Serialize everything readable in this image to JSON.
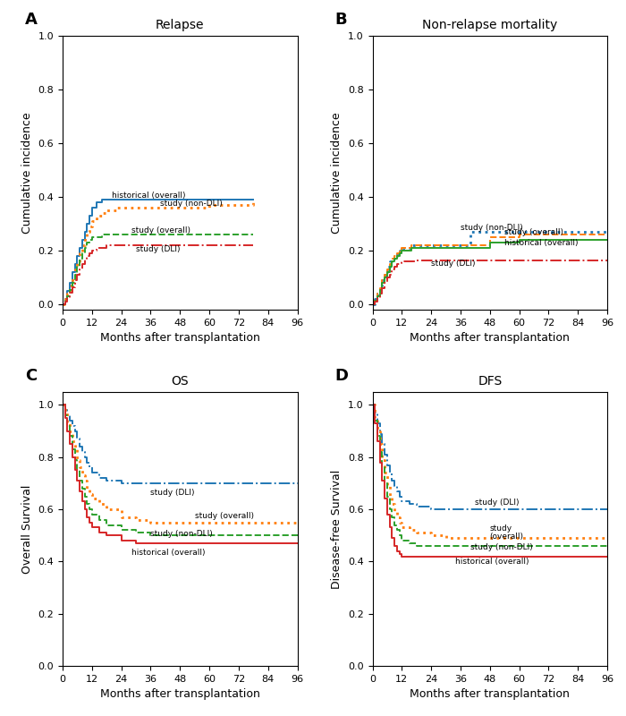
{
  "chart_data": [
    {
      "type": "step",
      "panel_label": "A",
      "title": "Relapse",
      "x_label": "Months after transplantation",
      "y_label": "Cumulative incidence",
      "xlim": [
        0,
        96
      ],
      "xticks": [
        0,
        12,
        24,
        36,
        48,
        60,
        72,
        84,
        96
      ],
      "ylim": [
        -0.02,
        1.0
      ],
      "yticks": [
        {
          "value": 0.0,
          "label": "0.0"
        },
        0.2,
        0.4,
        0.6,
        0.8,
        {
          "value": 1.0,
          "label": "1.0"
        }
      ],
      "series": [
        {
          "name": "historical (overall)",
          "line_style": "solid",
          "x": [
            0,
            1,
            2,
            3,
            4,
            5,
            6,
            7,
            8,
            9,
            10,
            11,
            12,
            14,
            16,
            18,
            20,
            22,
            24,
            30,
            36,
            78
          ],
          "values": [
            0,
            0.02,
            0.05,
            0.08,
            0.12,
            0.15,
            0.18,
            0.21,
            0.24,
            0.27,
            0.3,
            0.33,
            0.36,
            0.38,
            0.39,
            0.39,
            0.39,
            0.39,
            0.39,
            0.39,
            0.39,
            0.39
          ]
        },
        {
          "name": "study (non-DLI)",
          "line_style": "dotted",
          "x": [
            0,
            1,
            2,
            3,
            4,
            5,
            6,
            7,
            8,
            9,
            10,
            11,
            12,
            14,
            16,
            18,
            20,
            22,
            24,
            30,
            36,
            48,
            60,
            72,
            78
          ],
          "values": [
            0,
            0.02,
            0.04,
            0.07,
            0.1,
            0.13,
            0.16,
            0.19,
            0.22,
            0.25,
            0.27,
            0.29,
            0.31,
            0.33,
            0.34,
            0.35,
            0.35,
            0.36,
            0.36,
            0.36,
            0.36,
            0.36,
            0.37,
            0.37,
            0.38
          ]
        },
        {
          "name": "study (overall)",
          "line_style": "dashed",
          "x": [
            0,
            1,
            2,
            3,
            4,
            5,
            6,
            7,
            8,
            9,
            10,
            11,
            12,
            14,
            16,
            18,
            20,
            22,
            24,
            30,
            36,
            78
          ],
          "values": [
            0,
            0.015,
            0.03,
            0.055,
            0.08,
            0.11,
            0.14,
            0.17,
            0.19,
            0.21,
            0.23,
            0.24,
            0.25,
            0.25,
            0.26,
            0.26,
            0.26,
            0.26,
            0.26,
            0.26,
            0.26,
            0.26
          ]
        },
        {
          "name": "study (DLI)",
          "line_style": "dashdot",
          "x": [
            0,
            1,
            2,
            3,
            4,
            5,
            6,
            7,
            8,
            9,
            10,
            11,
            12,
            14,
            16,
            18,
            20,
            22,
            24,
            30,
            36,
            48,
            78
          ],
          "values": [
            0,
            0.01,
            0.025,
            0.045,
            0.065,
            0.09,
            0.11,
            0.13,
            0.15,
            0.17,
            0.18,
            0.19,
            0.2,
            0.21,
            0.21,
            0.22,
            0.22,
            0.22,
            0.22,
            0.22,
            0.22,
            0.22,
            0.22
          ]
        }
      ],
      "annotations": [
        {
          "text": "historical (overall)",
          "x": 20,
          "y": 0.405
        },
        {
          "text": "study (non-DLI)",
          "x": 40,
          "y": 0.375
        },
        {
          "text": "study (overall)",
          "x": 28,
          "y": 0.275
        },
        {
          "text": "study (DLI)",
          "x": 30,
          "y": 0.205
        }
      ]
    },
    {
      "type": "step",
      "panel_label": "B",
      "title": "Non-relapse mortality",
      "x_label": "Months after transplantation",
      "y_label": "Cumulative incidence",
      "xlim": [
        0,
        96
      ],
      "xticks": [
        0,
        12,
        24,
        36,
        48,
        60,
        72,
        84,
        96
      ],
      "ylim": [
        -0.02,
        1.0
      ],
      "yticks": [
        {
          "value": 0.0,
          "label": "0.0"
        },
        0.2,
        0.4,
        0.6,
        0.8,
        {
          "value": 1.0,
          "label": "1.0"
        }
      ],
      "series": [
        {
          "name": "study (non-DLI)",
          "line_style": "dotted",
          "x": [
            0,
            1,
            2,
            3,
            4,
            5,
            6,
            7,
            8,
            9,
            10,
            11,
            12,
            14,
            16,
            18,
            20,
            22,
            24,
            36,
            40,
            48,
            60,
            72,
            84,
            96
          ],
          "values": [
            0,
            0.02,
            0.04,
            0.07,
            0.09,
            0.12,
            0.14,
            0.16,
            0.17,
            0.18,
            0.19,
            0.2,
            0.21,
            0.21,
            0.22,
            0.22,
            0.22,
            0.22,
            0.22,
            0.22,
            0.27,
            0.27,
            0.27,
            0.27,
            0.27,
            0.27
          ]
        },
        {
          "name": "study (overall)",
          "line_style": "dashed",
          "x": [
            0,
            1,
            2,
            3,
            4,
            5,
            6,
            7,
            8,
            9,
            10,
            11,
            12,
            14,
            16,
            18,
            20,
            22,
            24,
            36,
            48,
            60,
            72,
            84,
            96
          ],
          "values": [
            0,
            0.02,
            0.04,
            0.06,
            0.09,
            0.11,
            0.13,
            0.15,
            0.17,
            0.18,
            0.19,
            0.2,
            0.21,
            0.21,
            0.22,
            0.22,
            0.22,
            0.22,
            0.22,
            0.22,
            0.25,
            0.26,
            0.26,
            0.26,
            0.26
          ]
        },
        {
          "name": "historical (overall)",
          "line_style": "solid",
          "x": [
            0,
            1,
            2,
            3,
            4,
            5,
            6,
            7,
            8,
            9,
            10,
            11,
            12,
            14,
            16,
            18,
            20,
            22,
            24,
            36,
            48,
            60,
            72,
            84,
            96
          ],
          "values": [
            0,
            0.015,
            0.03,
            0.055,
            0.08,
            0.1,
            0.12,
            0.14,
            0.16,
            0.17,
            0.18,
            0.19,
            0.2,
            0.2,
            0.21,
            0.21,
            0.21,
            0.21,
            0.21,
            0.21,
            0.23,
            0.24,
            0.24,
            0.24,
            0.24
          ]
        },
        {
          "name": "study (DLI)",
          "line_style": "dashdot",
          "x": [
            0,
            1,
            2,
            3,
            4,
            5,
            6,
            7,
            8,
            9,
            10,
            11,
            12,
            14,
            16,
            18,
            20,
            22,
            24,
            36,
            48,
            60,
            72,
            84,
            96
          ],
          "values": [
            0,
            0.01,
            0.025,
            0.04,
            0.06,
            0.08,
            0.1,
            0.11,
            0.13,
            0.14,
            0.15,
            0.155,
            0.16,
            0.16,
            0.16,
            0.165,
            0.165,
            0.165,
            0.165,
            0.165,
            0.165,
            0.165,
            0.165,
            0.165,
            0.165
          ]
        }
      ],
      "annotations": [
        {
          "text": "study (non-DLI)",
          "x": 36,
          "y": 0.285
        },
        {
          "text": "study (overall)",
          "x": 54,
          "y": 0.268
        },
        {
          "text": "historical (overall)",
          "x": 54,
          "y": 0.228
        },
        {
          "text": "study (DLI)",
          "x": 24,
          "y": 0.152
        }
      ]
    },
    {
      "type": "step",
      "panel_label": "C",
      "title": "OS",
      "x_label": "Months after transplantation",
      "y_label": "Overall Survival",
      "xlim": [
        0,
        96
      ],
      "xticks": [
        0,
        12,
        24,
        36,
        48,
        60,
        72,
        84,
        96
      ],
      "ylim": [
        0.0,
        1.05
      ],
      "yticks": [
        {
          "value": 0.0,
          "label": "0.0"
        },
        0.2,
        0.4,
        0.6,
        0.8,
        {
          "value": 1.0,
          "label": "1.0"
        }
      ],
      "series": [
        {
          "name": "study (DLI)",
          "line_style": "dashdot",
          "x": [
            0,
            1,
            2,
            3,
            4,
            5,
            6,
            7,
            8,
            9,
            10,
            11,
            12,
            15,
            18,
            24,
            30,
            36,
            48,
            60,
            72,
            84,
            96
          ],
          "values": [
            1.0,
            0.98,
            0.96,
            0.94,
            0.92,
            0.9,
            0.87,
            0.84,
            0.82,
            0.8,
            0.78,
            0.76,
            0.74,
            0.72,
            0.71,
            0.7,
            0.7,
            0.7,
            0.7,
            0.7,
            0.7,
            0.7,
            0.7
          ]
        },
        {
          "name": "study (overall)",
          "line_style": "dotted",
          "x": [
            0,
            1,
            2,
            3,
            4,
            5,
            6,
            7,
            8,
            9,
            10,
            11,
            12,
            15,
            18,
            24,
            30,
            36,
            48,
            60,
            72,
            84,
            96
          ],
          "values": [
            1.0,
            0.97,
            0.93,
            0.9,
            0.86,
            0.83,
            0.79,
            0.76,
            0.73,
            0.71,
            0.68,
            0.66,
            0.64,
            0.62,
            0.6,
            0.57,
            0.56,
            0.55,
            0.55,
            0.55,
            0.55,
            0.55,
            0.55
          ]
        },
        {
          "name": "study (non-DLI)",
          "line_style": "dashed",
          "x": [
            0,
            1,
            2,
            3,
            4,
            5,
            6,
            7,
            8,
            9,
            10,
            11,
            12,
            15,
            18,
            24,
            30,
            36,
            48,
            60,
            72,
            84,
            96
          ],
          "values": [
            1.0,
            0.96,
            0.92,
            0.88,
            0.83,
            0.79,
            0.75,
            0.71,
            0.68,
            0.65,
            0.62,
            0.6,
            0.58,
            0.56,
            0.54,
            0.52,
            0.51,
            0.5,
            0.5,
            0.5,
            0.5,
            0.5,
            0.5
          ]
        },
        {
          "name": "historical (overall)",
          "line_style": "solid",
          "x": [
            0,
            1,
            2,
            3,
            4,
            5,
            6,
            7,
            8,
            9,
            10,
            11,
            12,
            15,
            18,
            24,
            30,
            36,
            48,
            60,
            72,
            84,
            96
          ],
          "values": [
            1.0,
            0.95,
            0.9,
            0.85,
            0.8,
            0.75,
            0.71,
            0.67,
            0.63,
            0.6,
            0.57,
            0.55,
            0.53,
            0.51,
            0.5,
            0.48,
            0.47,
            0.47,
            0.47,
            0.47,
            0.47,
            0.47,
            0.47
          ]
        }
      ],
      "annotations": [
        {
          "text": "study (DLI)",
          "x": 36,
          "y": 0.665
        },
        {
          "text": "study (overall)",
          "x": 54,
          "y": 0.573
        },
        {
          "text": "study (non-DLI)",
          "x": 36,
          "y": 0.505
        },
        {
          "text": "historical (overall)",
          "x": 28,
          "y": 0.435
        }
      ]
    },
    {
      "type": "step",
      "panel_label": "D",
      "title": "DFS",
      "x_label": "Months after transplantation",
      "y_label": "Disease-free Survival",
      "xlim": [
        0,
        96
      ],
      "xticks": [
        0,
        12,
        24,
        36,
        48,
        60,
        72,
        84,
        96
      ],
      "ylim": [
        0.0,
        1.05
      ],
      "yticks": [
        {
          "value": 0.0,
          "label": "0.0"
        },
        0.2,
        0.4,
        0.6,
        0.8,
        {
          "value": 1.0,
          "label": "1.0"
        }
      ],
      "series": [
        {
          "name": "study (DLI)",
          "line_style": "dashdot",
          "x": [
            0,
            1,
            2,
            3,
            4,
            5,
            6,
            7,
            8,
            9,
            10,
            11,
            12,
            15,
            18,
            24,
            30,
            36,
            48,
            60,
            72,
            84,
            96
          ],
          "values": [
            1.0,
            0.97,
            0.93,
            0.89,
            0.85,
            0.81,
            0.77,
            0.74,
            0.71,
            0.69,
            0.67,
            0.65,
            0.63,
            0.62,
            0.61,
            0.6,
            0.6,
            0.6,
            0.6,
            0.6,
            0.6,
            0.6,
            0.6
          ]
        },
        {
          "name": "study (overall)",
          "line_style": "dotted",
          "x": [
            0,
            1,
            2,
            3,
            4,
            5,
            6,
            7,
            8,
            9,
            10,
            11,
            12,
            15,
            18,
            24,
            30,
            36,
            48,
            60,
            72,
            84,
            96
          ],
          "values": [
            1.0,
            0.95,
            0.9,
            0.85,
            0.79,
            0.74,
            0.69,
            0.65,
            0.62,
            0.59,
            0.57,
            0.55,
            0.53,
            0.52,
            0.51,
            0.5,
            0.49,
            0.49,
            0.49,
            0.49,
            0.49,
            0.49,
            0.49
          ]
        },
        {
          "name": "study (non-DLI)",
          "line_style": "dashed",
          "x": [
            0,
            1,
            2,
            3,
            4,
            5,
            6,
            7,
            8,
            9,
            10,
            11,
            12,
            15,
            18,
            24,
            30,
            36,
            48,
            60,
            72,
            84,
            96
          ],
          "values": [
            1.0,
            0.94,
            0.88,
            0.82,
            0.76,
            0.7,
            0.65,
            0.6,
            0.57,
            0.54,
            0.52,
            0.5,
            0.48,
            0.47,
            0.46,
            0.46,
            0.46,
            0.46,
            0.46,
            0.46,
            0.46,
            0.46,
            0.46
          ]
        },
        {
          "name": "historical (overall)",
          "line_style": "solid",
          "x": [
            0,
            1,
            2,
            3,
            4,
            5,
            6,
            7,
            8,
            9,
            10,
            11,
            12,
            15,
            18,
            24,
            30,
            36,
            48,
            60,
            72,
            84,
            96
          ],
          "values": [
            1.0,
            0.93,
            0.86,
            0.78,
            0.71,
            0.64,
            0.58,
            0.53,
            0.49,
            0.46,
            0.44,
            0.43,
            0.42,
            0.42,
            0.42,
            0.42,
            0.42,
            0.42,
            0.42,
            0.42,
            0.42,
            0.42,
            0.42
          ]
        }
      ],
      "annotations": [
        {
          "text": "study (DLI)",
          "x": 42,
          "y": 0.625
        },
        {
          "text": "study",
          "x": 48,
          "y": 0.525
        },
        {
          "text": "(overall)",
          "x": 48,
          "y": 0.495
        },
        {
          "text": "study (non-DLI)",
          "x": 40,
          "y": 0.455
        },
        {
          "text": "historical (overall)",
          "x": 34,
          "y": 0.4
        }
      ]
    }
  ]
}
